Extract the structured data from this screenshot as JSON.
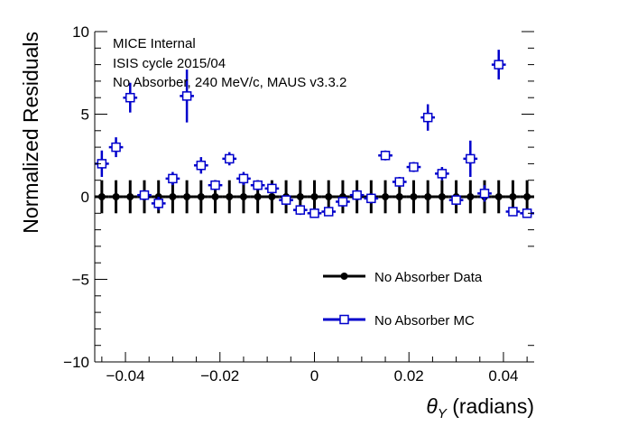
{
  "chart_data": {
    "type": "scatter",
    "annotations": [
      "MICE Internal",
      "ISIS cycle 2015/04",
      "No Absorber, 240 MeV/c, MAUS v3.3.2"
    ],
    "xlabel_symbol": "θ",
    "xlabel_subscript": "Y",
    "xlabel_unit": "(radians)",
    "ylabel": "Normalized Residuals",
    "xlim": [
      -0.0465,
      0.0465
    ],
    "ylim": [
      -10,
      10
    ],
    "x_ticks": [
      {
        "value": -0.04,
        "label": "−0.04"
      },
      {
        "value": -0.02,
        "label": "−0.02"
      },
      {
        "value": 0,
        "label": "0"
      },
      {
        "value": 0.02,
        "label": "0.02"
      },
      {
        "value": 0.04,
        "label": "0.04"
      }
    ],
    "y_ticks": [
      {
        "value": 10,
        "label": "10"
      },
      {
        "value": 5,
        "label": "5"
      },
      {
        "value": 0,
        "label": "0"
      },
      {
        "value": -5,
        "label": "−5"
      },
      {
        "value": -10,
        "label": "−10"
      }
    ],
    "x_minor_step": 0.005,
    "y_minor_step": 1,
    "bin_half_width": 0.0015,
    "x": [
      -0.045,
      -0.042,
      -0.039,
      -0.036,
      -0.033,
      -0.03,
      -0.027,
      -0.024,
      -0.021,
      -0.018,
      -0.015,
      -0.012,
      -0.009,
      -0.006,
      -0.003,
      0.0,
      0.003,
      0.006,
      0.009,
      0.012,
      0.015,
      0.018,
      0.021,
      0.024,
      0.027,
      0.03,
      0.033,
      0.036,
      0.039,
      0.042,
      0.045
    ],
    "series": [
      {
        "name": "No Absorber Data",
        "color": "#000000",
        "marker": "filled-circle",
        "y": [
          0,
          0,
          0,
          0,
          0,
          0,
          0,
          0,
          0,
          0,
          0,
          0,
          0,
          0,
          0,
          0,
          0,
          0,
          0,
          0,
          0,
          0,
          0,
          0,
          0,
          0,
          0,
          0,
          0,
          0,
          0
        ],
        "yerr": [
          1,
          1,
          1,
          1,
          1,
          1,
          1,
          1,
          1,
          1,
          1,
          1,
          1,
          1,
          1,
          1,
          1,
          1,
          1,
          1,
          1,
          1,
          1,
          1,
          1,
          1,
          1,
          1,
          1,
          1,
          1
        ]
      },
      {
        "name": "No Absorber MC",
        "color": "#0000cc",
        "marker": "open-square",
        "y": [
          2.0,
          3.0,
          6.0,
          0.1,
          -0.4,
          1.1,
          6.1,
          1.9,
          0.7,
          2.3,
          1.1,
          0.7,
          0.5,
          -0.2,
          -0.8,
          -1.0,
          -0.9,
          -0.3,
          0.1,
          -0.1,
          2.5,
          0.9,
          1.8,
          4.8,
          1.4,
          -0.2,
          2.3,
          0.2,
          8.0,
          -0.9,
          -1.0
        ],
        "yerr": [
          0.8,
          0.6,
          0.9,
          0.3,
          0.4,
          0.4,
          1.6,
          0.5,
          0.3,
          0.4,
          0.4,
          0.3,
          0.3,
          0.3,
          0.3,
          0.2,
          0.2,
          0.3,
          0.3,
          0.3,
          0.3,
          0.3,
          0.3,
          0.8,
          0.4,
          0.3,
          1.1,
          0.5,
          0.9,
          0.2,
          0.2
        ]
      }
    ],
    "legend_position": "lower-right"
  }
}
